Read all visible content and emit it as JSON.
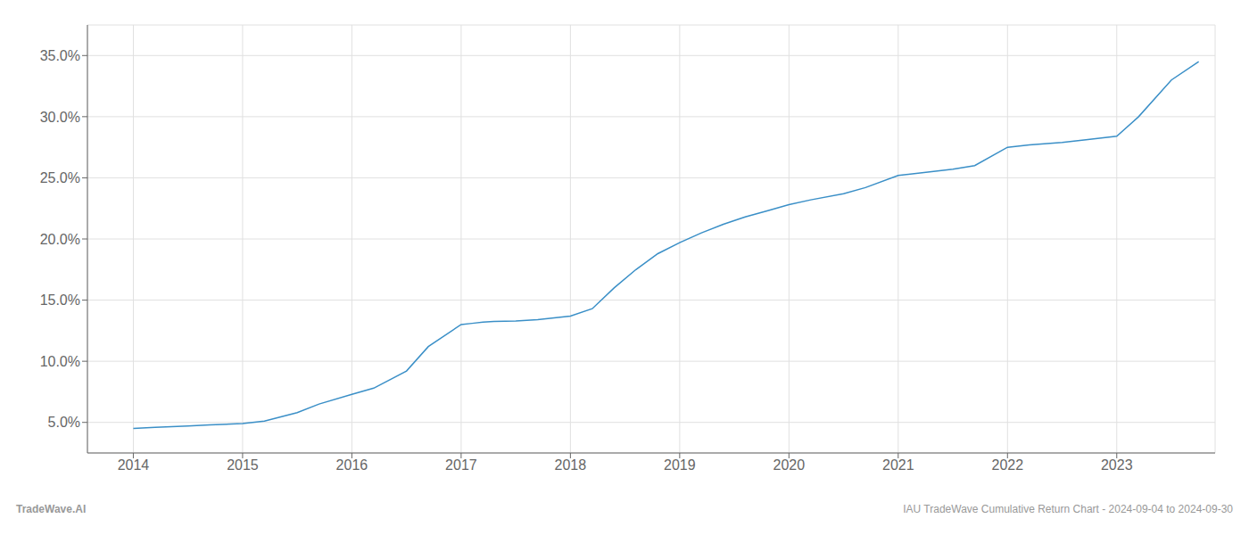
{
  "chart_data": {
    "type": "line",
    "x": [
      2014.0,
      2014.2,
      2014.5,
      2014.7,
      2015.0,
      2015.2,
      2015.5,
      2015.7,
      2016.0,
      2016.2,
      2016.5,
      2016.7,
      2017.0,
      2017.1,
      2017.2,
      2017.3,
      2017.5,
      2017.7,
      2018.0,
      2018.2,
      2018.4,
      2018.6,
      2018.8,
      2019.0,
      2019.2,
      2019.4,
      2019.6,
      2019.8,
      2020.0,
      2020.2,
      2020.5,
      2020.7,
      2021.0,
      2021.2,
      2021.5,
      2021.7,
      2022.0,
      2022.2,
      2022.5,
      2022.7,
      2023.0,
      2023.2,
      2023.5,
      2023.75
    ],
    "values": [
      4.5,
      4.6,
      4.7,
      4.8,
      4.9,
      5.1,
      5.8,
      6.5,
      7.3,
      7.8,
      9.2,
      11.2,
      13.0,
      13.1,
      13.2,
      13.25,
      13.3,
      13.4,
      13.7,
      14.3,
      16.0,
      17.5,
      18.8,
      19.7,
      20.5,
      21.2,
      21.8,
      22.3,
      22.8,
      23.2,
      23.7,
      24.2,
      25.2,
      25.4,
      25.7,
      26.0,
      27.5,
      27.7,
      27.9,
      28.1,
      28.4,
      30.0,
      33.0,
      34.5
    ],
    "color": "#3a8fc7",
    "xlim": [
      2013.58,
      2023.9
    ],
    "ylim": [
      2.5,
      37.5
    ],
    "xticks": [
      2014,
      2015,
      2016,
      2017,
      2018,
      2019,
      2020,
      2021,
      2022,
      2023
    ],
    "yticks": [
      {
        "value": 5.0,
        "label": "5.0%"
      },
      {
        "value": 10.0,
        "label": "10.0%"
      },
      {
        "value": 15.0,
        "label": "15.0%"
      },
      {
        "value": 20.0,
        "label": "20.0%"
      },
      {
        "value": 25.0,
        "label": "25.0%"
      },
      {
        "value": 30.0,
        "label": "30.0%"
      },
      {
        "value": 35.0,
        "label": "35.0%"
      }
    ],
    "grid": true,
    "annotations": [
      "TradeWave.AI",
      "IAU TradeWave Cumulative Return Chart - 2024-09-04 to 2024-09-30"
    ]
  }
}
